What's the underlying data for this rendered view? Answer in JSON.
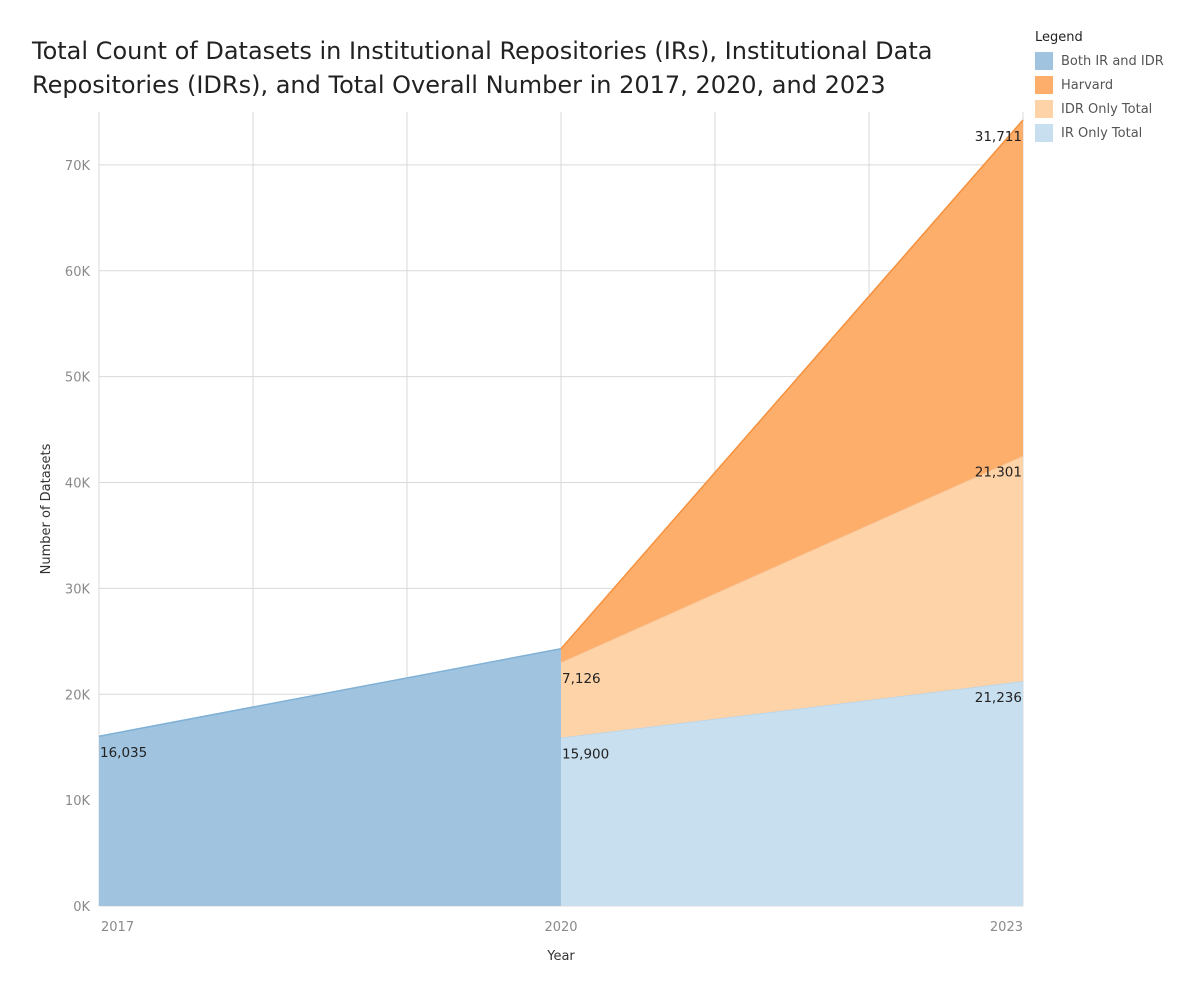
{
  "chart_data": {
    "type": "area",
    "title_lines": [
      "Total Count of Datasets in Institutional Repositories (IRs), Institutional Data",
      "Repositories (IDRs), and Total Overall Number in 2017, 2020, and 2023"
    ],
    "xlabel": "Year",
    "ylabel": "Number of Datasets",
    "x": [
      2017,
      2020,
      2023
    ],
    "x_tick_labels": [
      "2017",
      "2020",
      "2023"
    ],
    "ylim": [
      0,
      75000
    ],
    "y_ticks": [
      0,
      10000,
      20000,
      30000,
      40000,
      50000,
      60000,
      70000
    ],
    "y_tick_labels": [
      "0K",
      "10K",
      "20K",
      "30K",
      "40K",
      "50K",
      "60K",
      "70K"
    ],
    "legend_title": "Legend",
    "legend_position": "top-right",
    "series": [
      {
        "name": "Both IR and IDR",
        "color": "#a0c4e0",
        "points": [
          {
            "x": 2017,
            "value": 16035
          },
          {
            "x": 2020,
            "value": 24300
          }
        ],
        "baseline": "zero"
      },
      {
        "name": "IR Only Total",
        "color": "#c8dff0",
        "points": [
          {
            "x": 2020,
            "value": 15900
          },
          {
            "x": 2023,
            "value": 21236
          }
        ],
        "baseline": "zero"
      },
      {
        "name": "IDR Only Total",
        "color": "#fed3a8",
        "points": [
          {
            "x": 2020,
            "value": 7126
          },
          {
            "x": 2023,
            "value": 21301
          }
        ],
        "baseline": "stacked"
      },
      {
        "name": "Harvard",
        "color": "#fdae6b",
        "points": [
          {
            "x": 2020,
            "value": 1274
          },
          {
            "x": 2023,
            "value": 31711
          }
        ],
        "baseline": "stacked"
      }
    ],
    "legend_order": [
      "Both IR and IDR",
      "Harvard",
      "IDR Only Total",
      "IR Only Total"
    ],
    "data_labels": [
      {
        "text": "16,035",
        "x": 2017,
        "series": "Both IR and IDR"
      },
      {
        "text": "15,900",
        "x": 2020,
        "series": "IR Only Total"
      },
      {
        "text": "7,126",
        "x": 2020,
        "series": "IDR Only Total"
      },
      {
        "text": "21,236",
        "x": 2023,
        "series": "IR Only Total"
      },
      {
        "text": "21,301",
        "x": 2023,
        "series": "IDR Only Total"
      },
      {
        "text": "31,711",
        "x": 2023,
        "series": "Harvard"
      }
    ]
  }
}
